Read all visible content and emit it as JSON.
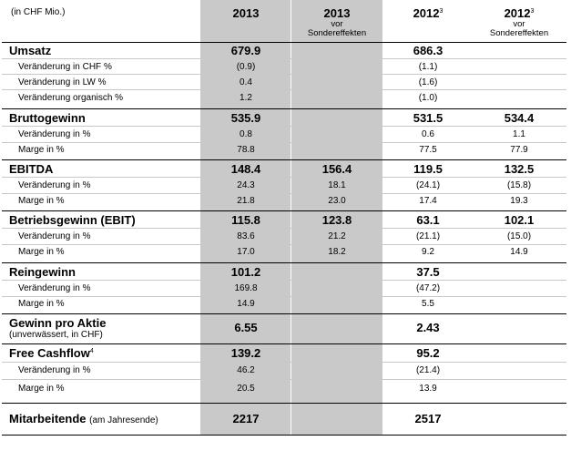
{
  "header": {
    "unit": "(in CHF Mio.)",
    "col1": "2013",
    "col2": "2013",
    "col2_sub1": "vor",
    "col2_sub2": "Sondereffekten",
    "col3": "2012",
    "col3_sup": "3",
    "col4": "2012",
    "col4_sup": "3",
    "col4_sub1": "vor",
    "col4_sub2": "Sondereffekten"
  },
  "rows": [
    {
      "label": "Umsatz",
      "c1": "679.9",
      "c2": "",
      "c3": "686.3",
      "c4": ""
    },
    {
      "label": "Veränderung in CHF %",
      "c1": "(0.9)",
      "c2": "",
      "c3": "(1.1)",
      "c4": ""
    },
    {
      "label": "Veränderung in LW %",
      "c1": "0.4",
      "c2": "",
      "c3": "(1.6)",
      "c4": ""
    },
    {
      "label": "Veränderung organisch %",
      "c1": "1.2",
      "c2": "",
      "c3": "(1.0)",
      "c4": ""
    },
    {
      "label": "Bruttogewinn",
      "c1": "535.9",
      "c2": "",
      "c3": "531.5",
      "c4": "534.4"
    },
    {
      "label": "Veränderung in %",
      "c1": "0.8",
      "c2": "",
      "c3": "0.6",
      "c4": "1.1"
    },
    {
      "label": "Marge in %",
      "c1": "78.8",
      "c2": "",
      "c3": "77.5",
      "c4": "77.9"
    },
    {
      "label": "EBITDA",
      "c1": "148.4",
      "c2": "156.4",
      "c3": "119.5",
      "c4": "132.5"
    },
    {
      "label": "Veränderung in %",
      "c1": "24.3",
      "c2": "18.1",
      "c3": "(24.1)",
      "c4": "(15.8)"
    },
    {
      "label": "Marge in %",
      "c1": "21.8",
      "c2": "23.0",
      "c3": "17.4",
      "c4": "19.3"
    },
    {
      "label": "Betriebsgewinn (EBIT)",
      "c1": "115.8",
      "c2": "123.8",
      "c3": "63.1",
      "c4": "102.1"
    },
    {
      "label": "Veränderung in %",
      "c1": "83.6",
      "c2": "21.2",
      "c3": "(21.1)",
      "c4": "(15.0)"
    },
    {
      "label": "Marge in %",
      "c1": "17.0",
      "c2": "18.2",
      "c3": "9.2",
      "c4": "14.9"
    },
    {
      "label": "Reingewinn",
      "c1": "101.2",
      "c2": "",
      "c3": "37.5",
      "c4": ""
    },
    {
      "label": "Veränderung in %",
      "c1": "169.8",
      "c2": "",
      "c3": "(47.2)",
      "c4": ""
    },
    {
      "label": "Marge in %",
      "c1": "14.9",
      "c2": "",
      "c3": "5.5",
      "c4": ""
    },
    {
      "label": "Gewinn pro Aktie",
      "note": "(unverwässert, in CHF)",
      "c1": "6.55",
      "c2": "",
      "c3": "2.43",
      "c4": ""
    },
    {
      "label": "Free Cashflow",
      "sup": "4",
      "c1": "139.2",
      "c2": "",
      "c3": "95.2",
      "c4": ""
    },
    {
      "label": "Veränderung in %",
      "c1": "46.2",
      "c2": "",
      "c3": "(21.4)",
      "c4": ""
    },
    {
      "label": "Marge in %",
      "c1": "20.5",
      "c2": "",
      "c3": "13.9",
      "c4": ""
    },
    {
      "label": "Mitarbeitende",
      "note": "(am Jahresende)",
      "c1": "2217",
      "c2": "",
      "c3": "2517",
      "c4": ""
    }
  ]
}
